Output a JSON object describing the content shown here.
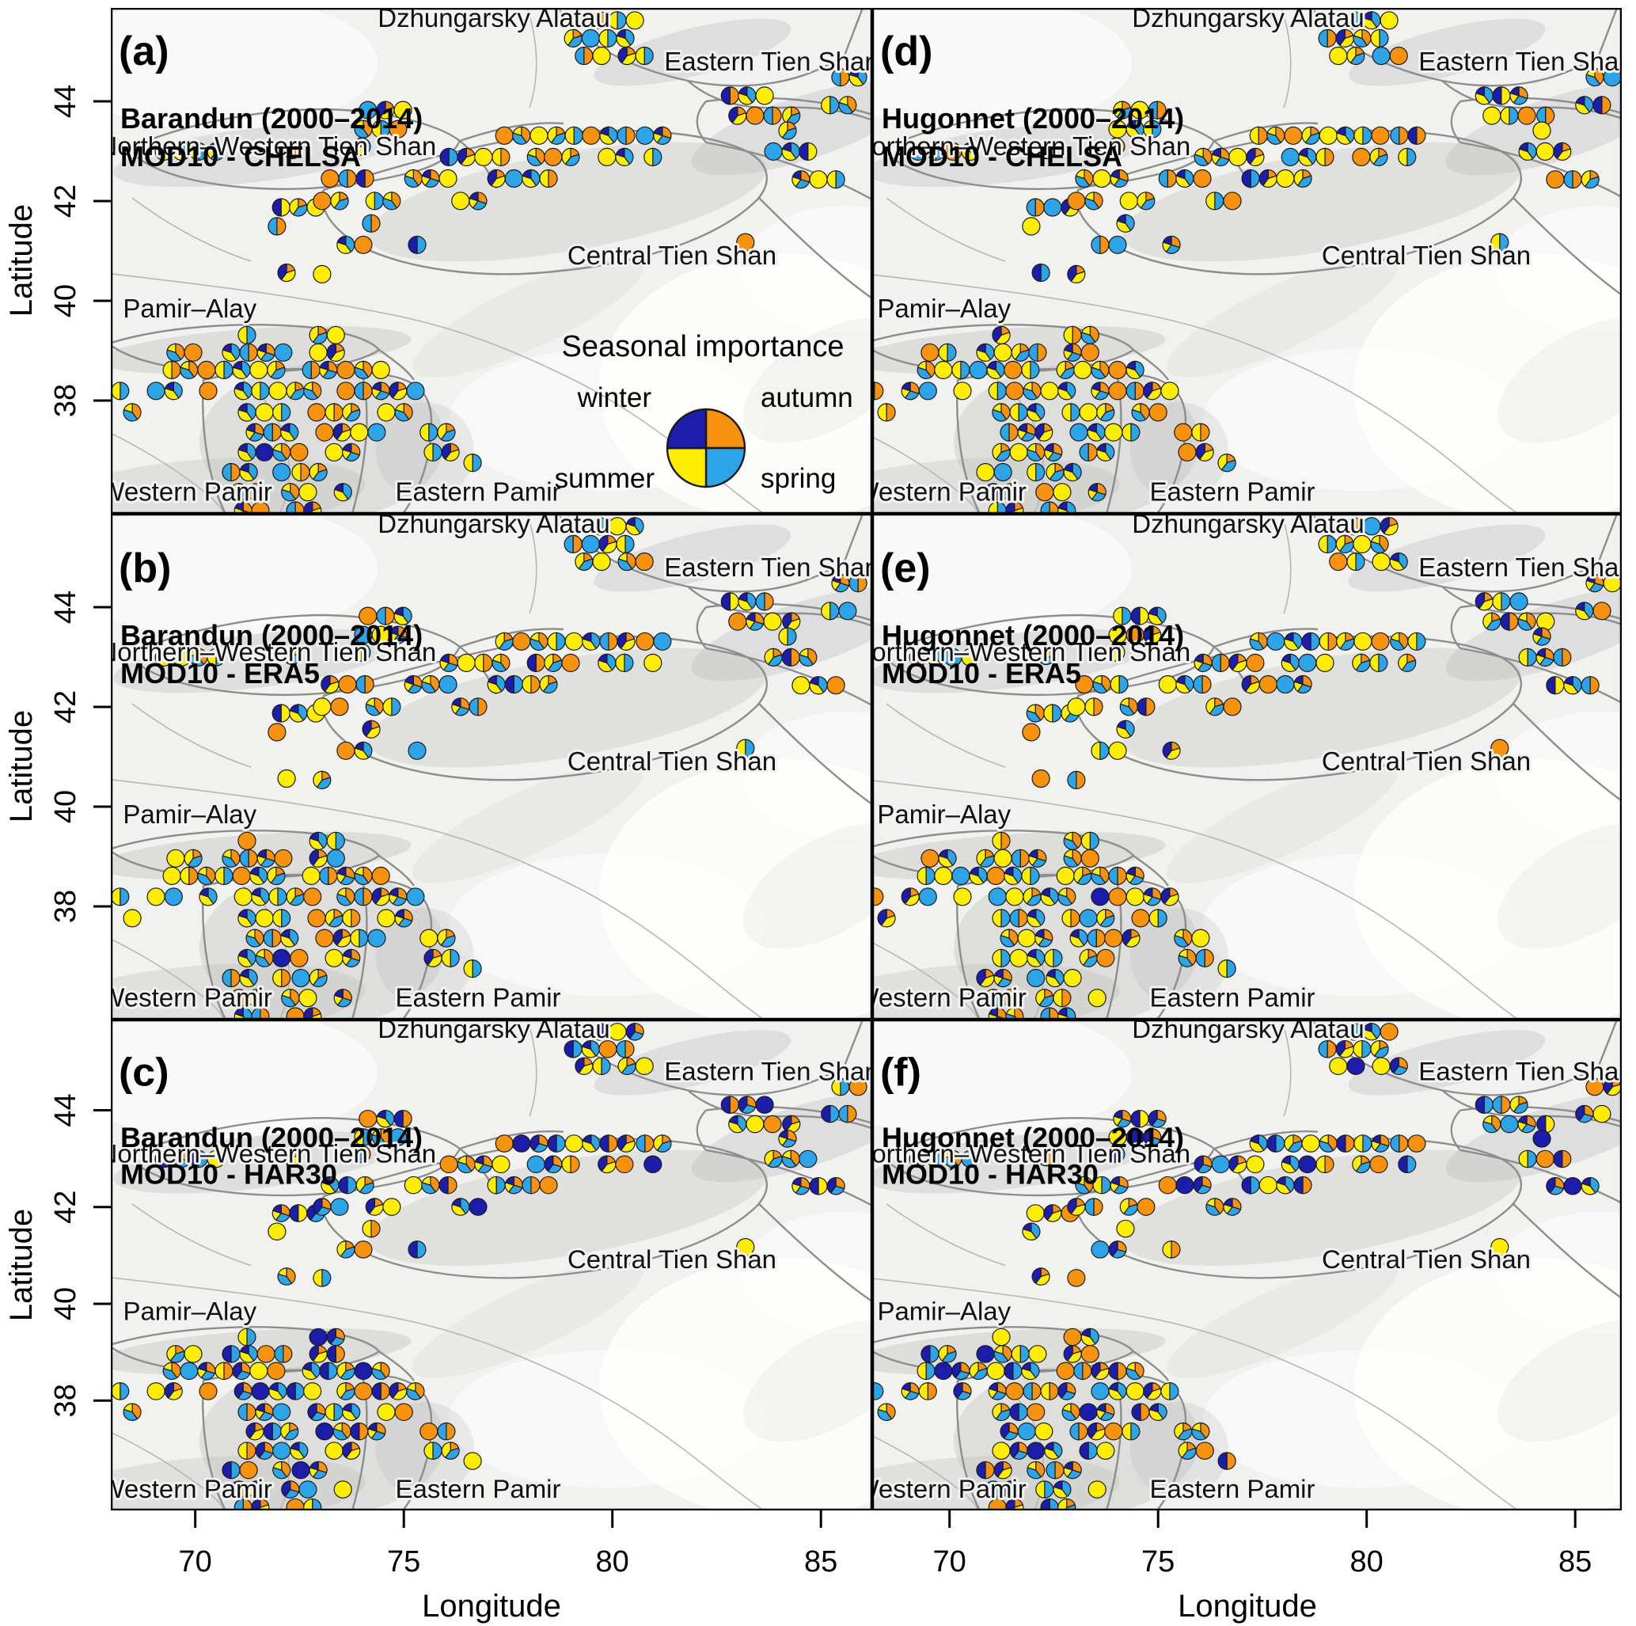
{
  "figure": {
    "grid": {
      "rows": 3,
      "cols": 2
    },
    "panels": [
      {
        "id": "a",
        "letter": "(a)",
        "line1": "Barandun (2000–2014)",
        "line2": "MOD10 - CHELSA",
        "types": "a62f16b42c69b2c04f6a1b8e2604b2b6e41c2a60b8f240a2f60b41e7c25a0f2b6049ae2c1b50f6a2e4b07c2f6f2a0b4e12c5a06b2f4e0a261b0b62fa04ec1b2605f2ae4b0c216fb3a02e6c4b15f60a2be04c2a6"
      },
      {
        "id": "b",
        "letter": "(b)",
        "line1": "Barandun (2000–2014)",
        "line2": "MOD10 - ERA5",
        "types": "62b41c6f2a08b40e2c61f9a2b06e4c2a6f04b12e68b20f0a62b4c01e25a9f0b62c04ea1b75f20a6e4c0b12f60b62fa4e0c125a60bf24ea0621b2b6f0a4ce1b260f52ea4b0c612fba302ec64b51f06a2eb40ca26"
      },
      {
        "id": "c",
        "letter": "(c)",
        "line1": "Barandun (2000–2014)",
        "line2": "MOD10 - HAR30",
        "types": "32d7b04c6f29d3b20c74fa1e8d2603d72c0b96a14e8d203d72b9c4f0ae21d5c03b7f2a96e40d1c2b35f07a6e63df27b04c9a1e5d20b7f3a62c0d3b72f09ca4e1d6b20c7f3a9e045d1b2c6f70a3e9bd124c06fa2"
      },
      {
        "id": "d",
        "letter": "(d)",
        "line1": "Hugonnet (2000–2014)",
        "line2": "MOD10 - CHELSA",
        "types": "6b24ca62f10b8e2604b9b2c04f6a1a60b8f242b6e41c25a0f2b6049ae2c1b50f6a2e4b07c2f0a2f60b41e7c2c5a06b2f4e0a261b06f2a0b4e1260a2be04c2a6b62fa04ec1b2605f2ae4b0c216fb3a02e6c4b15f"
      },
      {
        "id": "e",
        "letter": "(e)",
        "line1": "Hugonnet (2000–2014)",
        "line2": "MOD10 - ERA5",
        "types": "41c6f2a062bc61f9a2b06e48b40e24b12e68b20c2a6f0a1b75f20a6e4c0b12f6f0a62b4c01e25a9f0b62c04e5a60bf24ea0621b0b62fa4e0c1212fba302ec64b51f06a2eb40ca262b6f0a4ce1b260f52ea4b0c6"
      },
      {
        "id": "f",
        "letter": "(f)",
        "line1": "Hugonnet (2000–2014)",
        "line2": "MOD10 - HAR30",
        "types": "7b04c6f232d74fa1e8d2609d3b20c96a14e8d23d72c0bb7f2a96e40d1c2b35f07a6e03d72b9c4f0ae21d5c0320b7f3a62c063df27b04c9a1e5de045d1b2c6f70a3e9bd124c06fa2d3b72f09ca4e1d6b20c7f3a9"
      }
    ]
  },
  "legend": {
    "title": "Seasonal importance",
    "labels": {
      "winter": "winter",
      "autumn": "autumn",
      "summer": "summer",
      "spring": "spring"
    },
    "colors": {
      "winter": "#1c1daa",
      "autumn": "#f6920e",
      "summer": "#ffed00",
      "spring": "#2da4e8"
    }
  },
  "axes": {
    "x": {
      "label": "Longitude",
      "ticks": [
        70,
        75,
        80,
        85
      ]
    },
    "y": {
      "label": "Latitude",
      "ticks": [
        44,
        42,
        40,
        38
      ]
    }
  },
  "regions": [
    {
      "label": "Dzhungarsky Alatau",
      "lon": 77.16,
      "lat": 45.49
    },
    {
      "label": "Eastern Tien Shan",
      "lon": 83.82,
      "lat": 44.62
    },
    {
      "label": "Northern–Western Tien Shan",
      "lon": 71.73,
      "lat": 42.92
    },
    {
      "label": "Central Tien Shan",
      "lon": 81.43,
      "lat": 40.73
    },
    {
      "label": "Pamir–Alay",
      "lon": 69.87,
      "lat": 39.66
    },
    {
      "label": "Western Pamir",
      "lon": 69.78,
      "lat": 35.99
    },
    {
      "label": "Eastern Pamir",
      "lon": 76.78,
      "lat": 35.99
    }
  ],
  "chart_data": {
    "type": "map-pies",
    "description": "Seasonal importance (pie fraction of winter/autumn/summer/spring) at glacier sites in the Tien Shan and Pamir. Six map panels compare Barandun and Hugonnet mass-balance data (2000-2014) for MOD10 vs CHELSA, ERA5 and HAR30.",
    "lon_range": [
      67.35,
      86.3
    ],
    "lat_range": [
      35.7,
      45.87
    ],
    "seasons_order_clockwise_from_top": [
      "autumn",
      "spring",
      "summer",
      "winter"
    ],
    "pie_types": {
      "0": [
        10,
        0,
        0,
        0
      ],
      "1": [
        0,
        10,
        0,
        0
      ],
      "2": [
        0,
        0,
        10,
        0
      ],
      "3": [
        0,
        0,
        0,
        10
      ],
      "4": [
        5,
        5,
        0,
        0
      ],
      "5": [
        5,
        0,
        5,
        0
      ],
      "6": [
        0,
        5,
        5,
        0
      ],
      "7": [
        0,
        5,
        0,
        5
      ],
      "8": [
        0,
        0,
        5,
        5
      ],
      "9": [
        5,
        0,
        0,
        5
      ],
      "a": [
        4,
        4,
        2,
        0
      ],
      "b": [
        0,
        4,
        4,
        2
      ],
      "c": [
        2,
        0,
        4,
        4
      ],
      "d": [
        3,
        3,
        0,
        4
      ],
      "e": [
        3,
        3,
        2,
        2
      ],
      "f": [
        2,
        4,
        4,
        0
      ]
    },
    "sites": [
      [
        79.7,
        45.62
      ],
      [
        80.12,
        45.62
      ],
      [
        80.54,
        45.62
      ],
      [
        79.06,
        45.26
      ],
      [
        79.48,
        45.26
      ],
      [
        79.89,
        45.26
      ],
      [
        80.31,
        45.26
      ],
      [
        79.32,
        44.91
      ],
      [
        79.74,
        44.91
      ],
      [
        80.35,
        44.91
      ],
      [
        80.77,
        44.91
      ],
      [
        82.82,
        44.11
      ],
      [
        83.23,
        44.11
      ],
      [
        83.65,
        44.11
      ],
      [
        83.0,
        43.71
      ],
      [
        83.42,
        43.71
      ],
      [
        83.84,
        43.71
      ],
      [
        84.29,
        43.71
      ],
      [
        85.22,
        43.92
      ],
      [
        85.64,
        43.92
      ],
      [
        83.86,
        42.99
      ],
      [
        84.28,
        42.99
      ],
      [
        84.69,
        42.99
      ],
      [
        84.52,
        42.43
      ],
      [
        84.94,
        42.43
      ],
      [
        85.36,
        42.43
      ],
      [
        83.19,
        41.17
      ],
      [
        85.47,
        44.48
      ],
      [
        85.89,
        44.48
      ],
      [
        69.25,
        42.99
      ],
      [
        69.67,
        42.99
      ],
      [
        70.08,
        42.99
      ],
      [
        70.5,
        42.99
      ],
      [
        72.32,
        43.02
      ],
      [
        74.14,
        43.82
      ],
      [
        74.56,
        43.82
      ],
      [
        74.98,
        43.82
      ],
      [
        74.03,
        43.44
      ],
      [
        74.45,
        43.44
      ],
      [
        74.86,
        43.44
      ],
      [
        73.99,
        43.09
      ],
      [
        72.06,
        41.87
      ],
      [
        72.47,
        41.87
      ],
      [
        72.89,
        41.87
      ],
      [
        71.96,
        41.49
      ],
      [
        77.41,
        43.31
      ],
      [
        77.82,
        43.31
      ],
      [
        78.24,
        43.31
      ],
      [
        78.66,
        43.31
      ],
      [
        79.08,
        43.31
      ],
      [
        79.49,
        43.31
      ],
      [
        79.91,
        43.31
      ],
      [
        80.33,
        43.31
      ],
      [
        80.78,
        43.31
      ],
      [
        81.2,
        43.31
      ],
      [
        76.08,
        42.88
      ],
      [
        76.5,
        42.88
      ],
      [
        76.91,
        42.88
      ],
      [
        77.33,
        42.88
      ],
      [
        78.17,
        42.88
      ],
      [
        78.58,
        42.88
      ],
      [
        79.0,
        42.88
      ],
      [
        79.87,
        42.88
      ],
      [
        80.29,
        42.88
      ],
      [
        80.97,
        42.88
      ],
      [
        73.23,
        42.45
      ],
      [
        73.65,
        42.45
      ],
      [
        74.07,
        42.45
      ],
      [
        75.23,
        42.45
      ],
      [
        75.64,
        42.45
      ],
      [
        76.06,
        42.45
      ],
      [
        77.22,
        42.45
      ],
      [
        77.64,
        42.45
      ],
      [
        78.05,
        42.45
      ],
      [
        78.47,
        42.45
      ],
      [
        73.04,
        42.0
      ],
      [
        73.46,
        42.0
      ],
      [
        74.3,
        42.0
      ],
      [
        74.71,
        42.0
      ],
      [
        76.36,
        42.0
      ],
      [
        76.78,
        42.0
      ],
      [
        74.22,
        41.55
      ],
      [
        73.61,
        41.12
      ],
      [
        74.03,
        41.12
      ],
      [
        75.32,
        41.12
      ],
      [
        72.19,
        40.56
      ],
      [
        73.04,
        40.53
      ],
      [
        84.2,
        43.41
      ],
      [
        71.24,
        39.31
      ],
      [
        72.95,
        39.31
      ],
      [
        73.37,
        39.31
      ],
      [
        69.53,
        38.96
      ],
      [
        69.95,
        38.96
      ],
      [
        70.86,
        38.96
      ],
      [
        71.28,
        38.96
      ],
      [
        71.7,
        38.96
      ],
      [
        72.11,
        38.96
      ],
      [
        72.95,
        38.96
      ],
      [
        73.37,
        38.96
      ],
      [
        69.44,
        38.61
      ],
      [
        69.85,
        38.61
      ],
      [
        70.27,
        38.61
      ],
      [
        70.69,
        38.61
      ],
      [
        71.11,
        38.61
      ],
      [
        71.52,
        38.61
      ],
      [
        71.94,
        38.61
      ],
      [
        72.78,
        38.61
      ],
      [
        73.19,
        38.61
      ],
      [
        73.61,
        38.61
      ],
      [
        74.03,
        38.61
      ],
      [
        74.45,
        38.61
      ],
      [
        68.2,
        38.19
      ],
      [
        69.06,
        38.19
      ],
      [
        69.48,
        38.19
      ],
      [
        70.31,
        38.19
      ],
      [
        71.15,
        38.19
      ],
      [
        71.56,
        38.19
      ],
      [
        71.98,
        38.19
      ],
      [
        72.4,
        38.19
      ],
      [
        72.81,
        38.19
      ],
      [
        73.61,
        38.19
      ],
      [
        74.03,
        38.19
      ],
      [
        74.45,
        38.19
      ],
      [
        74.86,
        38.19
      ],
      [
        75.28,
        38.19
      ],
      [
        71.24,
        37.76
      ],
      [
        71.66,
        37.76
      ],
      [
        72.07,
        37.76
      ],
      [
        72.91,
        37.76
      ],
      [
        73.33,
        37.76
      ],
      [
        73.74,
        37.76
      ],
      [
        74.58,
        37.76
      ],
      [
        75.0,
        37.76
      ],
      [
        71.43,
        37.36
      ],
      [
        71.85,
        37.36
      ],
      [
        72.26,
        37.36
      ],
      [
        73.1,
        37.36
      ],
      [
        73.52,
        37.36
      ],
      [
        73.93,
        37.36
      ],
      [
        74.35,
        37.36
      ],
      [
        75.6,
        37.36
      ],
      [
        76.02,
        37.36
      ],
      [
        71.24,
        36.96
      ],
      [
        71.66,
        36.96
      ],
      [
        72.07,
        36.96
      ],
      [
        72.49,
        36.96
      ],
      [
        73.33,
        36.96
      ],
      [
        73.74,
        36.96
      ],
      [
        75.7,
        36.96
      ],
      [
        76.12,
        36.96
      ],
      [
        70.86,
        36.56
      ],
      [
        71.28,
        36.56
      ],
      [
        72.07,
        36.56
      ],
      [
        72.53,
        36.56
      ],
      [
        72.95,
        36.56
      ],
      [
        71.05,
        36.16
      ],
      [
        71.47,
        36.16
      ],
      [
        72.28,
        36.16
      ],
      [
        72.7,
        36.16
      ],
      [
        73.54,
        36.16
      ],
      [
        71.15,
        35.79
      ],
      [
        71.56,
        35.79
      ],
      [
        72.4,
        35.79
      ],
      [
        72.81,
        35.79
      ],
      [
        67.54,
        37.76
      ],
      [
        68.49,
        37.76
      ],
      [
        76.65,
        36.75
      ]
    ]
  }
}
